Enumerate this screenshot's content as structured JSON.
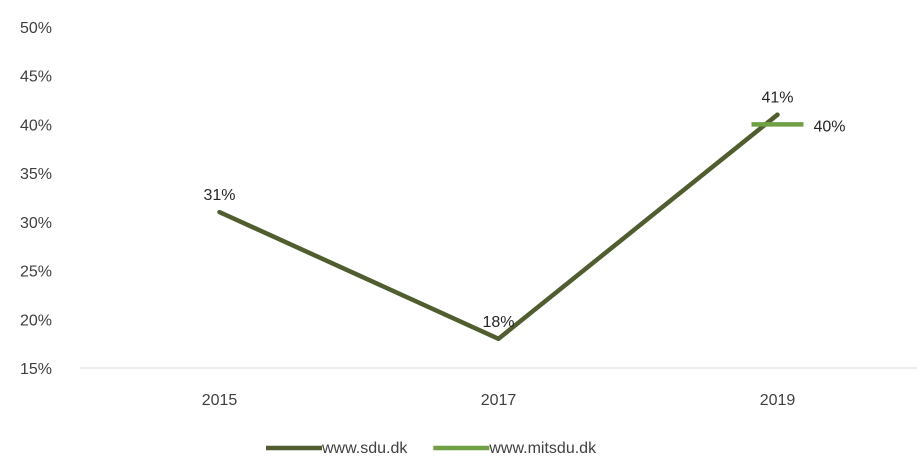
{
  "chart_data": {
    "type": "line",
    "categories": [
      "2015",
      "2017",
      "2019"
    ],
    "ylim": [
      0.15,
      0.5
    ],
    "yticks": [
      0.15,
      0.2,
      0.25,
      0.3,
      0.35,
      0.4,
      0.45,
      0.5
    ],
    "ytick_labels": [
      "15%",
      "20%",
      "25%",
      "30%",
      "35%",
      "40%",
      "45%",
      "50%"
    ],
    "grid": false,
    "legend_position": "bottom",
    "series": [
      {
        "name": "www.sdu.dk",
        "color": "#4f5d2f",
        "values": [
          0.31,
          0.18,
          0.41
        ],
        "labels": [
          "31%",
          "18%",
          "41%"
        ]
      },
      {
        "name": "www.mitsdu.dk",
        "color": "#70a044",
        "values": [
          null,
          null,
          0.4
        ],
        "labels": [
          "",
          "",
          "40%"
        ]
      }
    ]
  }
}
